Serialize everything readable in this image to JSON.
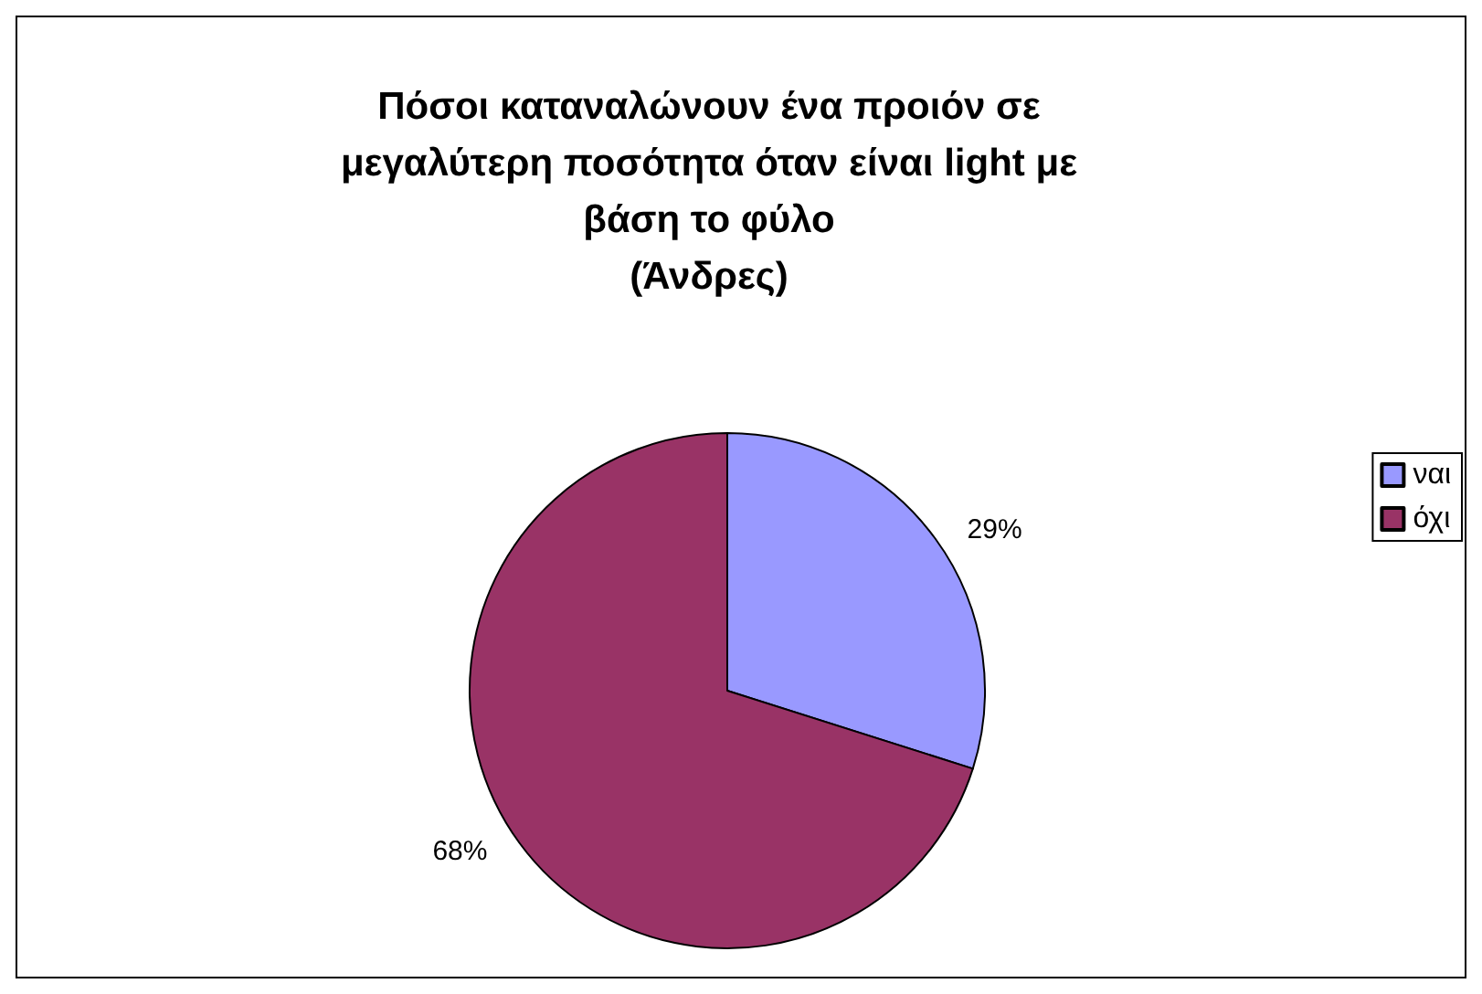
{
  "chart_data": {
    "type": "pie",
    "title": "Πόσοι καταναλώνουν ένα προιόν σε\nμεγαλύτερη ποσότητα όταν είναι light με\nβάση το φύλο\n(Άνδρες)",
    "categories": [
      "ναι",
      "όχι"
    ],
    "values": [
      29,
      68
    ],
    "colors": [
      "#9999ff",
      "#993366"
    ],
    "value_labels": [
      "29%",
      "68%"
    ],
    "legend": "right"
  }
}
